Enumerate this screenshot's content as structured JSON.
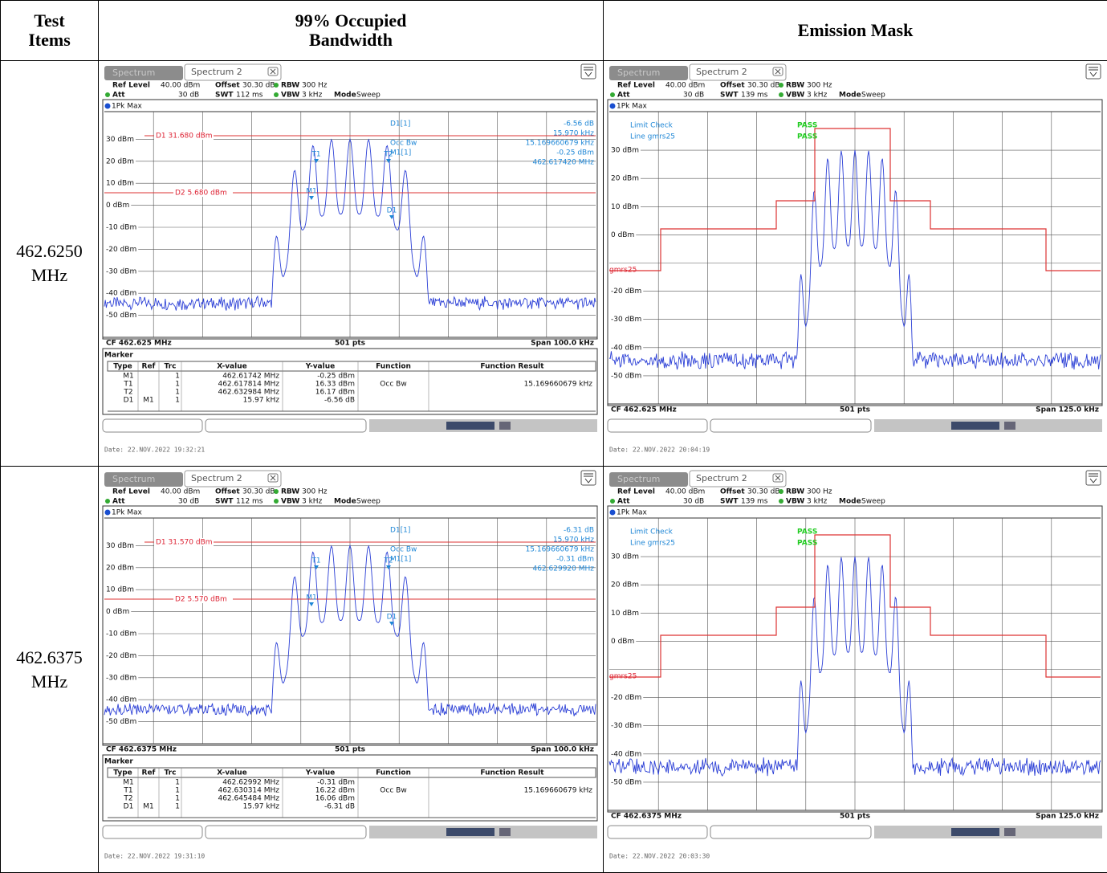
{
  "table": {
    "header": [
      "Test Items",
      "99% Occupied Bandwidth",
      "Emission Mask"
    ],
    "rows": [
      {
        "freq": "462.6250 MHz",
        "obw": {
          "tabs": [
            "Spectrum",
            "Spectrum 2"
          ],
          "settings": [
            [
              "Ref Level",
              "40.00 dBm",
              "Offset",
              "30.30 dB",
              "RBW",
              "300 Hz"
            ],
            [
              "Att",
              "30 dB",
              "SWT",
              "112 ms",
              "VBW",
              "3 kHz",
              "Mode",
              "Sweep"
            ]
          ],
          "trace": "1Pk Max",
          "ylabels": [
            "30 dBm",
            "20 dBm",
            "10 dBm",
            "0 dBm",
            "-10 dBm",
            "-20 dBm",
            "-30 dBm",
            "-40 dBm",
            "-50 dBm"
          ],
          "lines": [
            "D1 31.680 dBm",
            "D2 5.680 dBm"
          ],
          "markers": [
            "T1",
            "T2",
            "M1",
            "D1"
          ],
          "readout": [
            "D1[1]",
            "-6.56 dB",
            "15.970 kHz",
            "Occ Bw",
            "15.169660679 kHz",
            "M1[1]",
            "-0.25 dBm",
            "462.617420 MHz"
          ],
          "footer": [
            "CF 462.625 MHz",
            "501 pts",
            "Span 100.0 kHz"
          ],
          "marker_table": {
            "title": "Marker",
            "header": [
              "Type",
              "Ref",
              "Trc",
              "X-value",
              "Y-value",
              "Function",
              "Function Result"
            ],
            "rows": [
              {
                "type": "M1",
                "trc": "1",
                "x": "462.61742 MHz",
                "y": "-0.25 dBm"
              },
              {
                "type": "T1",
                "trc": "1",
                "x": "462.617814 MHz",
                "y": "16.33 dBm",
                "function": "Occ Bw",
                "result": "15.169660679 kHz"
              },
              {
                "type": "T2",
                "trc": "1",
                "x": "462.632984 MHz",
                "y": "16.17 dBm"
              },
              {
                "type": "D1",
                "ref": "M1",
                "trc": "1",
                "x": "15.97 kHz",
                "y": "-6.56 dB"
              }
            ]
          },
          "date": "Date: 22.NOV.2022 19:32:21"
        },
        "mask": {
          "tabs": [
            "Spectrum",
            "Spectrum 2"
          ],
          "settings": [
            [
              "Ref Level",
              "40.00 dBm",
              "Offset",
              "30.30 dB",
              "RBW",
              "300 Hz"
            ],
            [
              "Att",
              "30 dB",
              "SWT",
              "139 ms",
              "VBW",
              "3 kHz",
              "Mode",
              "Sweep"
            ]
          ],
          "trace": "1Pk Max",
          "limit": [
            "Limit Check",
            "PASS",
            "Line gmrs25",
            "PASS"
          ],
          "limit_line": "gmrs25",
          "ylabels": [
            "30 dBm",
            "20 dBm",
            "10 dBm",
            "0 dBm",
            "-20 dBm",
            "-30 dBm",
            "-40 dBm",
            "-50 dBm"
          ],
          "footer": [
            "CF 462.625 MHz",
            "501 pts",
            "Span 125.0 kHz"
          ],
          "date": "Date: 22.NOV.2022 20:04:19"
        }
      },
      {
        "freq": "462.6375 MHz",
        "obw": {
          "tabs": [
            "Spectrum",
            "Spectrum 2"
          ],
          "settings": [
            [
              "Ref Level",
              "40.00 dBm",
              "Offset",
              "30.30 dB",
              "RBW",
              "300 Hz"
            ],
            [
              "Att",
              "30 dB",
              "SWT",
              "112 ms",
              "VBW",
              "3 kHz",
              "Mode",
              "Sweep"
            ]
          ],
          "trace": "1Pk Max",
          "ylabels": [
            "30 dBm",
            "20 dBm",
            "10 dBm",
            "0 dBm",
            "-10 dBm",
            "-20 dBm",
            "-30 dBm",
            "-40 dBm",
            "-50 dBm"
          ],
          "lines": [
            "D1 31.570 dBm",
            "D2 5.570 dBm"
          ],
          "markers": [
            "T1",
            "T2",
            "M1",
            "D1"
          ],
          "readout": [
            "D1[1]",
            "-6.31 dB",
            "15.970 kHz",
            "Occ Bw",
            "15.169660679 kHz",
            "M1[1]",
            "-0.31 dBm",
            "462.629920 MHz"
          ],
          "footer": [
            "CF 462.6375 MHz",
            "501 pts",
            "Span 100.0 kHz"
          ],
          "marker_table": {
            "title": "Marker",
            "header": [
              "Type",
              "Ref",
              "Trc",
              "X-value",
              "Y-value",
              "Function",
              "Function Result"
            ],
            "rows": [
              {
                "type": "M1",
                "trc": "1",
                "x": "462.62992 MHz",
                "y": "-0.31 dBm"
              },
              {
                "type": "T1",
                "trc": "1",
                "x": "462.630314 MHz",
                "y": "16.22 dBm",
                "function": "Occ Bw",
                "result": "15.169660679 kHz"
              },
              {
                "type": "T2",
                "trc": "1",
                "x": "462.645484 MHz",
                "y": "16.06 dBm"
              },
              {
                "type": "D1",
                "ref": "M1",
                "trc": "1",
                "x": "15.97 kHz",
                "y": "-6.31 dB"
              }
            ]
          },
          "date": "Date: 22.NOV.2022 19:31:10"
        },
        "mask": {
          "tabs": [
            "Spectrum",
            "Spectrum 2"
          ],
          "settings": [
            [
              "Ref Level",
              "40.00 dBm",
              "Offset",
              "30.30 dB",
              "RBW",
              "300 Hz"
            ],
            [
              "Att",
              "30 dB",
              "SWT",
              "139 ms",
              "VBW",
              "3 kHz",
              "Mode",
              "Sweep"
            ]
          ],
          "trace": "1Pk Max",
          "limit": [
            "Limit Check",
            "PASS",
            "Line gmrs25",
            "PASS"
          ],
          "limit_line": "gmrs25",
          "ylabels": [
            "30 dBm",
            "20 dBm",
            "10 dBm",
            "0 dBm",
            "-20 dBm",
            "-30 dBm",
            "-40 dBm",
            "-50 dBm"
          ],
          "footer": [
            "CF 462.6375 MHz",
            "501 pts",
            "Span 125.0 kHz"
          ],
          "date": "Date: 22.NOV.2022 20:03:30"
        }
      }
    ]
  }
}
